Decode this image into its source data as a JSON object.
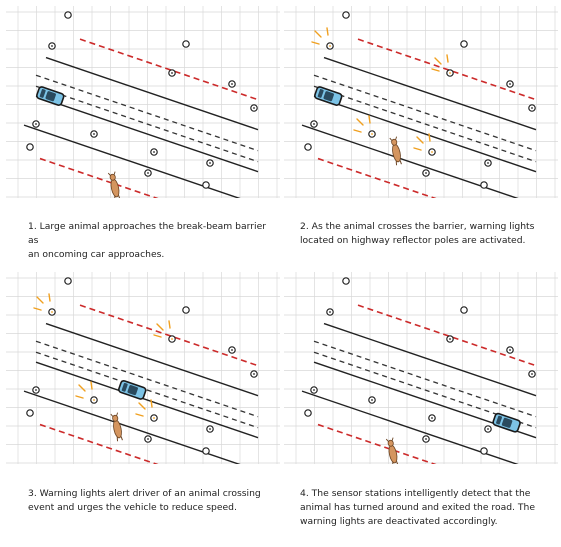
{
  "colors": {
    "grid": "#d9d9d9",
    "road_line": "#222222",
    "center_dash": "#333333",
    "barrier": "#cc2a2a",
    "car_body": "#7cc3e6",
    "animal": "#d4955f",
    "light_rays": "#f0a020"
  },
  "panels": [
    {
      "caption": "1. Large animal approaches the break-beam barrier as\nan oncoming car approaches.",
      "car_position": 0.05,
      "animal_progress": 0.0,
      "lights_active": false,
      "icons": [
        "grid",
        "road",
        "car-icon",
        "animal-icon",
        "reflector-pole-icon",
        "barrier-line"
      ]
    },
    {
      "caption": "2. As the animal crosses the barrier, warning lights\nlocated on highway reflector poles are activated.",
      "car_position": 0.05,
      "animal_progress": 0.35,
      "lights_active": true,
      "icons": [
        "grid",
        "road",
        "car-icon",
        "animal-icon",
        "reflector-pole-icon",
        "warning-light-icon"
      ]
    },
    {
      "caption": "3. Warning lights alert driver of an animal crossing\nevent and urges the vehicle to reduce speed.",
      "car_position": 0.45,
      "animal_progress": 0.25,
      "lights_active": true,
      "icons": [
        "grid",
        "road",
        "car-icon",
        "animal-icon",
        "reflector-pole-icon",
        "warning-light-icon"
      ]
    },
    {
      "caption": "4. The sensor stations intelligently detect that the\nanimal has turned around and exited the road. The\nwarning lights are deactivated accordingly.",
      "car_position": 0.92,
      "animal_progress": 0.0,
      "lights_active": false,
      "icons": [
        "grid",
        "road",
        "car-icon",
        "animal-icon",
        "reflector-pole-icon",
        "barrier-line"
      ]
    }
  ]
}
